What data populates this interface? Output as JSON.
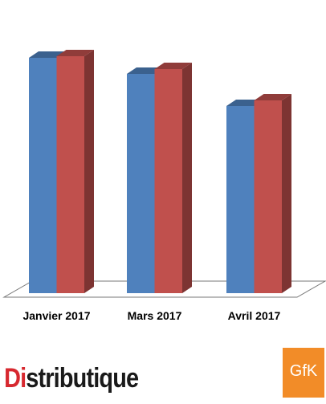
{
  "chart_data": {
    "type": "bar3d",
    "categories": [
      "Janvier 2017",
      "Mars 2017",
      "Avril 2017"
    ],
    "series": [
      {
        "color": "#4f81bd",
        "values": [
          293,
          273,
          233
        ]
      },
      {
        "color": "#c0504d",
        "values": [
          295,
          279,
          240
        ]
      }
    ]
  },
  "logos": {
    "left_parts": [
      "Di",
      "stributique"
    ],
    "right": "GfK"
  }
}
